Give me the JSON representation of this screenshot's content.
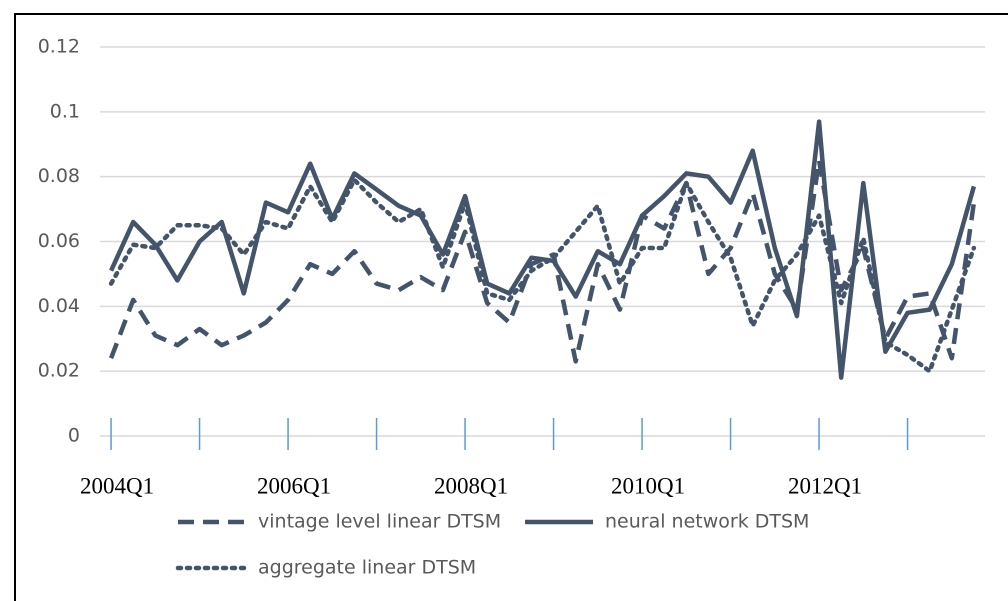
{
  "chart_data": {
    "type": "line",
    "categories": [
      "2004Q1",
      null,
      null,
      null,
      null,
      null,
      null,
      null,
      "2006Q1",
      null,
      null,
      null,
      null,
      null,
      null,
      null,
      "2008Q1",
      null,
      null,
      null,
      null,
      null,
      null,
      null,
      "2010Q1",
      null,
      null,
      null,
      null,
      null,
      null,
      null,
      "2012Q1",
      null,
      null,
      null,
      null,
      null,
      null,
      null
    ],
    "series": [
      {
        "name": "vintage level linear DTSM",
        "color": "#44546a",
        "dash": "dashed",
        "values": [
          0.024,
          0.042,
          0.031,
          0.028,
          0.033,
          0.028,
          0.031,
          0.035,
          0.042,
          0.053,
          0.05,
          0.057,
          0.047,
          0.045,
          0.049,
          0.045,
          0.063,
          0.041,
          0.035,
          0.053,
          0.056,
          0.023,
          0.053,
          0.039,
          0.068,
          0.064,
          0.078,
          0.05,
          0.058,
          0.075,
          0.05,
          0.039,
          0.085,
          0.045,
          0.058,
          0.03,
          0.043,
          0.044,
          0.024,
          0.072
        ]
      },
      {
        "name": "neural network DTSM",
        "color": "#44546a",
        "dash": "solid",
        "values": [
          0.051,
          0.066,
          0.059,
          0.048,
          0.06,
          0.066,
          0.044,
          0.072,
          0.069,
          0.084,
          0.067,
          0.081,
          0.076,
          0.071,
          0.068,
          0.056,
          0.074,
          0.047,
          0.044,
          0.055,
          0.054,
          0.043,
          0.057,
          0.053,
          0.068,
          0.074,
          0.081,
          0.08,
          0.072,
          0.088,
          0.058,
          0.037,
          0.097,
          0.018,
          0.078,
          0.026,
          0.038,
          0.039,
          0.053,
          0.077
        ]
      },
      {
        "name": "aggregate linear DTSM",
        "color": "#44546a",
        "dash": "dotted",
        "values": [
          0.047,
          0.059,
          0.058,
          0.065,
          0.065,
          0.064,
          0.056,
          0.066,
          0.064,
          0.077,
          0.066,
          0.079,
          0.072,
          0.066,
          0.07,
          0.052,
          0.072,
          0.044,
          0.042,
          0.051,
          0.055,
          0.063,
          0.071,
          0.047,
          0.058,
          0.058,
          0.078,
          0.066,
          0.055,
          0.034,
          0.048,
          0.056,
          0.068,
          0.041,
          0.061,
          0.029,
          0.025,
          0.02,
          0.039,
          0.058
        ]
      }
    ],
    "ylim": [
      0,
      0.12
    ],
    "yticks": [
      0,
      0.02,
      0.04,
      0.06,
      0.08,
      0.1,
      0.12
    ],
    "grid": true
  }
}
